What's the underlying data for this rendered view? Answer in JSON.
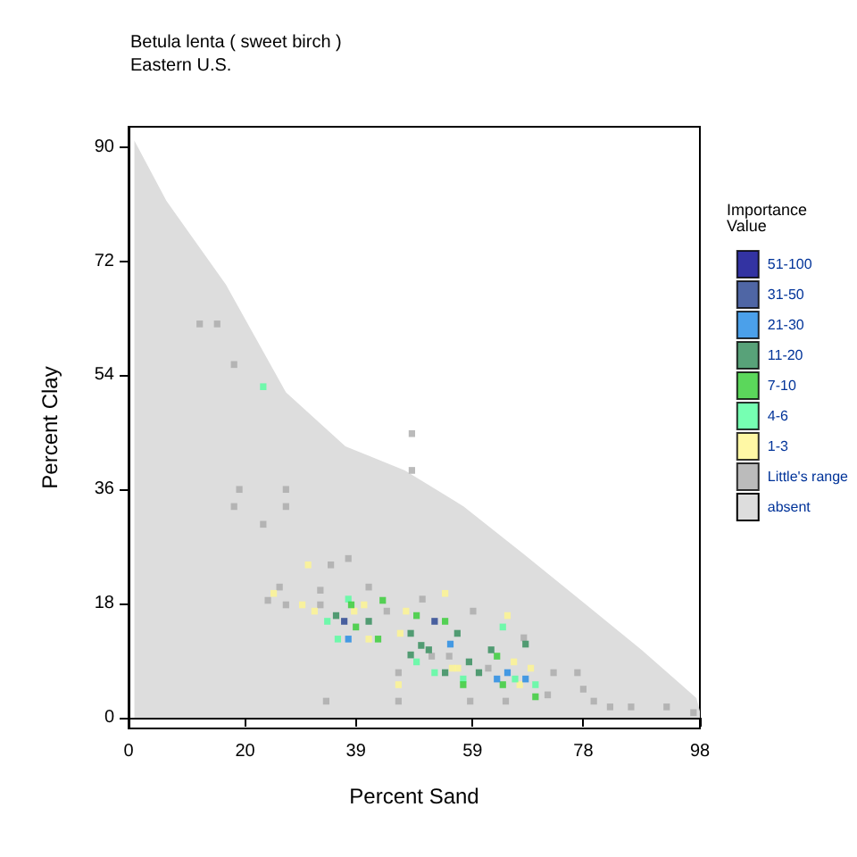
{
  "chart_data": {
    "type": "scatter",
    "title": "Betula lenta ( sweet birch )",
    "subtitle": "Eastern U.S.",
    "xlabel": "Percent Sand",
    "ylabel": "Percent Clay",
    "legend_title": "Importance Value",
    "legend": "right",
    "marker": "square",
    "xlim": [
      0,
      98
    ],
    "ylim": [
      -1.7,
      93.2
    ],
    "xticks": [
      0,
      20,
      39,
      59,
      78,
      98
    ],
    "yticks": [
      0,
      18,
      36,
      54,
      72,
      90
    ],
    "series": [
      {
        "name": "51-100",
        "color": "#00008b"
      },
      {
        "name": "31-50",
        "color": "#23408e",
        "x": [
          37.0,
          52.5
        ],
        "values": [
          15.2,
          15.2
        ]
      },
      {
        "name": "21-30",
        "color": "#1e88e5",
        "x": [
          37.7,
          55.2,
          63.2,
          65.0,
          68.1
        ],
        "values": [
          12.4,
          11.6,
          6.1,
          7.1,
          6.1
        ]
      },
      {
        "name": "11-20",
        "color": "#2e8b57",
        "x": [
          35.6,
          41.2,
          48.4,
          48.4,
          50.2,
          51.5,
          56.4,
          58.4,
          62.2,
          68.1,
          60.1,
          54.3
        ],
        "values": [
          16.1,
          15.2,
          13.3,
          9.9,
          11.4,
          10.7,
          13.3,
          8.8,
          10.7,
          11.6,
          7.1,
          7.1
        ]
      },
      {
        "name": "7-10",
        "color": "#32cd32",
        "x": [
          38.2,
          39.0,
          43.6,
          49.4,
          42.8,
          54.3,
          63.2,
          64.2,
          69.8,
          57.4
        ],
        "values": [
          17.8,
          14.3,
          18.5,
          16.1,
          12.4,
          15.2,
          9.7,
          5.2,
          3.3,
          5.2
        ]
      },
      {
        "name": "4-6",
        "color": "#54ff9f",
        "x": [
          23.1,
          37.7,
          34.1,
          35.9,
          49.4,
          52.5,
          57.4,
          64.2,
          66.3,
          69.8
        ],
        "values": [
          52.2,
          18.7,
          15.2,
          12.4,
          8.8,
          7.1,
          6.1,
          14.3,
          6.1,
          5.2
        ]
      },
      {
        "name": "1-3",
        "color": "#fff68f",
        "x": [
          30.8,
          24.9,
          29.8,
          31.9,
          38.7,
          40.4,
          46.6,
          47.6,
          54.3,
          55.5,
          56.5,
          65.0,
          66.1,
          69.0,
          67.1,
          46.3,
          41.2
        ],
        "values": [
          24.1,
          19.6,
          17.8,
          16.8,
          16.8,
          17.8,
          13.3,
          16.8,
          19.6,
          7.8,
          7.8,
          16.1,
          8.8,
          7.8,
          5.2,
          5.2,
          12.4
        ]
      },
      {
        "name": "Little's range",
        "color": "#aaaaaa",
        "x": [
          12.2,
          15.2,
          18.1,
          19.0,
          27.0,
          18.1,
          27.0,
          23.1,
          37.7,
          34.7,
          25.9,
          32.9,
          41.2,
          23.9,
          27.0,
          32.9,
          44.3,
          50.4,
          59.1,
          48.6,
          48.6,
          67.8,
          72.9,
          77.0,
          78.0,
          79.8,
          82.6,
          86.2,
          92.3,
          96.9,
          33.9,
          46.3,
          58.6,
          64.7,
          71.9,
          46.3,
          52.0,
          55.0,
          61.7
        ],
        "values": [
          62.1,
          62.1,
          55.7,
          36.0,
          36.0,
          33.3,
          33.3,
          30.5,
          25.1,
          24.1,
          20.6,
          20.1,
          20.6,
          18.5,
          17.8,
          17.8,
          16.8,
          18.7,
          16.8,
          44.8,
          39.0,
          12.6,
          7.1,
          7.1,
          4.5,
          2.6,
          1.7,
          1.7,
          1.7,
          0.8,
          2.6,
          2.6,
          2.6,
          2.6,
          3.6,
          7.1,
          9.7,
          9.7,
          7.8
        ]
      },
      {
        "name": "absent",
        "type": "area",
        "marker": "none",
        "color": "#dddddd",
        "x": [
          1,
          6.5,
          16.7,
          27,
          37.2,
          47.4,
          57.5,
          67.8,
          78,
          88,
          97.4,
          98
        ],
        "values": [
          91,
          81.5,
          68.3,
          51.3,
          42.8,
          39,
          33.3,
          25.8,
          18.2,
          10.7,
          3.1,
          1
        ]
      }
    ]
  }
}
